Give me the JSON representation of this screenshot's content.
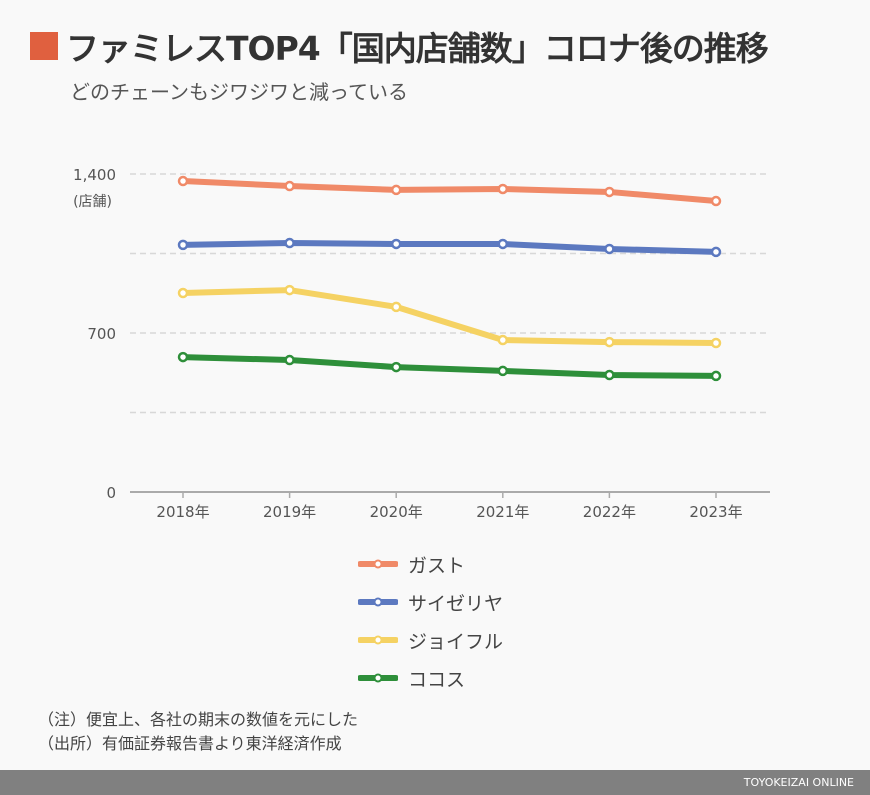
{
  "header": {
    "title": "ファミレスTOP4「国内店舗数」コロナ後の推移",
    "subtitle": "どのチェーンもジワジワと減っている"
  },
  "chart_data": {
    "type": "line",
    "categories": [
      "2018年",
      "2019年",
      "2020年",
      "2021年",
      "2022年",
      "2023年"
    ],
    "ylabel": "(店舗)",
    "ylim": [
      0,
      1400
    ],
    "yticks": [
      0,
      700,
      1400
    ],
    "ytick_labels": [
      "0",
      "700",
      "1,400"
    ],
    "grid": true,
    "legend_position": "bottom",
    "series": [
      {
        "name": "ガスト",
        "color": "#f08a68",
        "values": [
          1369,
          1347,
          1330,
          1334,
          1321,
          1281
        ]
      },
      {
        "name": "サイゼリヤ",
        "color": "#5c79c0",
        "values": [
          1088,
          1096,
          1092,
          1092,
          1070,
          1057
        ]
      },
      {
        "name": "ジョイフル",
        "color": "#f5d263",
        "values": [
          876,
          889,
          815,
          669,
          660,
          656
        ]
      },
      {
        "name": "ココス",
        "color": "#2e8f3a",
        "values": [
          594,
          581,
          550,
          533,
          515,
          511
        ]
      }
    ]
  },
  "notes": [
    "（注）便宜上、各社の期末の数値を元にした",
    "（出所）有価証券報告書より東洋経済作成"
  ],
  "footer": {
    "brand": "TOYOKEIZAI ONLINE"
  }
}
